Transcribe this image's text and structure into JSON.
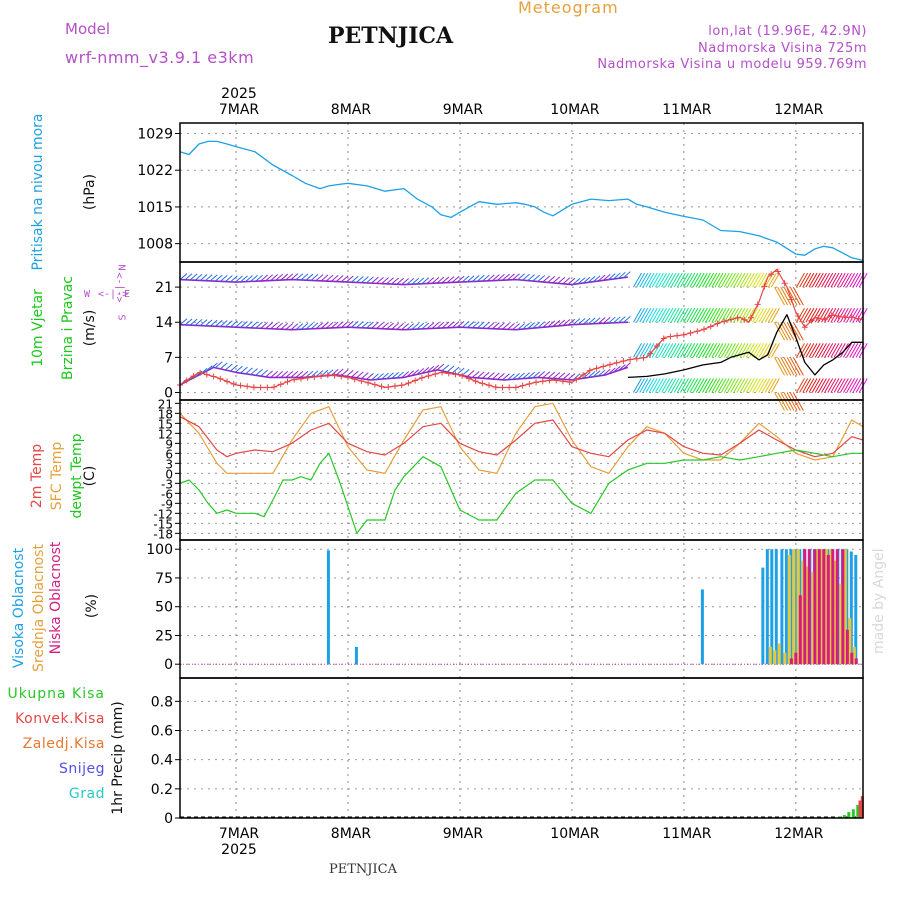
{
  "header": {
    "model_label": "Model",
    "model_name": "wrf-nmm_v3.9.1  e3km",
    "station": "PETNJICA",
    "product": "Meteogram",
    "coords": "lon,lat (19.96E, 42.9N)",
    "elevation": "Nadmorska Visina 725m",
    "model_elevation": "Nadmorska Visina u modelu 959.769m",
    "footer_station": "PETNJICA",
    "credit": "made by Angel"
  },
  "colors": {
    "pressure": "#1ea0e6",
    "wind_top": "#8c28c8",
    "wind_gust": "#e64646",
    "temp2m": "#e64646",
    "sfc": "#e6a03c",
    "dew": "#28c828",
    "cloud_high": "#1ea0e6",
    "cloud_mid": "#e6c83c",
    "cloud_low": "#d21e82",
    "label_purple": "#b450c8",
    "label_orange": "#e6a03c"
  },
  "time_axis": {
    "year": "2025",
    "days": [
      "7MAR",
      "8MAR",
      "9MAR",
      "10MAR",
      "11MAR",
      "12MAR"
    ]
  },
  "panel_labels": {
    "pressure": [
      "Pritisak na nivou mora",
      "(hPa)"
    ],
    "wind": [
      "10m Vjetar",
      "Brzina i Pravac",
      "(m/s)"
    ],
    "wind_compass": [
      "N",
      "<-|->",
      "S",
      "W",
      "<-|->",
      "E"
    ],
    "temp": [
      "2m Temp",
      "SFC Temp",
      "dewpt Temp",
      "(C)"
    ],
    "cloud": [
      "Visoka Oblacnost",
      "Srednja Oblacnost",
      "Niska Oblacnost",
      "(%)"
    ],
    "precip": [
      "Ukupna Kisa",
      "Konvek.Kisa",
      "Zaledj.Kisa",
      "Snijeg",
      "Grad",
      "1hr Precip (mm)"
    ]
  },
  "chart_data": [
    {
      "type": "line",
      "id": "pressure",
      "title": "Pritisak na nivou mora",
      "ylabel": "(hPa)",
      "yticks": [
        1008,
        1015,
        1022,
        1029
      ],
      "ylim": [
        1004.5,
        1031
      ],
      "x_unit": "days from 7MAR 00UTC",
      "xlim": [
        -0.5,
        5.6
      ],
      "series": [
        {
          "name": "MSLP",
          "x": [
            -0.5,
            -0.42,
            -0.33,
            -0.25,
            -0.17,
            -0.08,
            0,
            0.17,
            0.33,
            0.5,
            0.62,
            0.75,
            0.83,
            0.92,
            1.0,
            1.17,
            1.33,
            1.5,
            1.62,
            1.75,
            1.83,
            1.92,
            2.0,
            2.17,
            2.33,
            2.5,
            2.58,
            2.67,
            2.75,
            2.83,
            3.0,
            3.17,
            3.33,
            3.5,
            3.58,
            3.67,
            3.83,
            4.0,
            4.17,
            4.33,
            4.5,
            4.67,
            4.83,
            5.0,
            5.08,
            5.17,
            5.25,
            5.33,
            5.5,
            5.6
          ],
          "y": [
            1025.5,
            1025,
            1027,
            1027.5,
            1027.5,
            1027,
            1026.5,
            1025.5,
            1023,
            1021,
            1019.5,
            1018.5,
            1019,
            1019.3,
            1019.5,
            1019,
            1018,
            1018.5,
            1016.5,
            1015,
            1013.5,
            1013,
            1014,
            1016,
            1015.5,
            1015.8,
            1015.5,
            1015,
            1014,
            1013.3,
            1015.5,
            1016.5,
            1016.2,
            1016.5,
            1015.5,
            1015,
            1014,
            1013.2,
            1012.5,
            1010.5,
            1010.3,
            1009.5,
            1008.3,
            1006,
            1005.8,
            1007,
            1007.5,
            1007.2,
            1005.3,
            1004.8
          ]
        }
      ]
    },
    {
      "type": "line",
      "id": "wind",
      "title": "10m Vjetar Brzina i Pravac",
      "ylabel": "(m/s)",
      "yticks": [
        0,
        7,
        14,
        21
      ],
      "ylim": [
        -1.5,
        26
      ],
      "x_unit": "days from 7MAR 00UTC",
      "xlim": [
        -0.5,
        5.6
      ],
      "series": [
        {
          "name": "speed",
          "x": [
            3.5,
            3.67,
            3.83,
            4.0,
            4.17,
            4.33,
            4.42,
            4.5,
            4.58,
            4.67,
            4.75,
            4.83,
            4.92,
            5.0,
            5.08,
            5.17,
            5.25,
            5.33,
            5.42,
            5.5,
            5.6
          ],
          "y": [
            3,
            3.2,
            3.7,
            4.5,
            5.5,
            6,
            7,
            7.5,
            8,
            6.5,
            7.5,
            12,
            15.5,
            11,
            6,
            3.5,
            5.5,
            6.5,
            8,
            10,
            10
          ]
        },
        {
          "name": "gust",
          "x": [
            -0.5,
            -0.33,
            -0.17,
            0,
            0.17,
            0.33,
            0.5,
            0.67,
            0.83,
            1.0,
            1.17,
            1.33,
            1.5,
            1.67,
            1.83,
            2.0,
            2.17,
            2.33,
            2.5,
            2.67,
            2.83,
            3.0,
            3.17,
            3.33,
            3.5,
            3.67,
            3.83,
            4.0,
            4.17,
            4.33,
            4.5,
            4.58,
            4.67,
            4.75,
            4.83,
            4.92,
            5.0,
            5.08,
            5.17,
            5.25,
            5.33,
            5.42,
            5.5,
            5.6
          ],
          "y": [
            1.5,
            4,
            3,
            1.5,
            1,
            1,
            2.5,
            3,
            3.5,
            3,
            2,
            1,
            1.5,
            3,
            4,
            3.5,
            2,
            1,
            1,
            2,
            2.5,
            2,
            4.5,
            5.5,
            6.5,
            7,
            11,
            11.5,
            12.5,
            14,
            15,
            14,
            18,
            23,
            24.5,
            21,
            16,
            13,
            15,
            14.5,
            15.5,
            15,
            15,
            14.5
          ]
        },
        {
          "name": "member-high",
          "x": [
            -0.5,
            0,
            0.5,
            1,
            1.5,
            2,
            2.5,
            3,
            3.5
          ],
          "y": [
            22.5,
            22,
            22.5,
            22,
            21.5,
            22,
            22.5,
            21.5,
            23
          ]
        },
        {
          "name": "member-mid",
          "x": [
            -0.5,
            0,
            0.5,
            1,
            1.5,
            2,
            2.5,
            3,
            3.5
          ],
          "y": [
            13.5,
            13,
            12.5,
            13,
            12.5,
            13,
            12.5,
            13.5,
            14
          ]
        }
      ]
    },
    {
      "type": "line",
      "id": "temperature",
      "title": "2m Temp / SFC Temp / dewpt Temp",
      "ylabel": "(C)",
      "yticks": [
        21,
        18,
        15,
        12,
        9,
        6,
        3,
        0,
        -3,
        -6,
        -9,
        -12,
        -15,
        -18
      ],
      "ylim": [
        -20,
        22
      ],
      "x_unit": "days from 7MAR 00UTC",
      "xlim": [
        -0.5,
        5.6
      ],
      "series": [
        {
          "name": "2m Temp",
          "x": [
            -0.5,
            -0.33,
            -0.17,
            -0.08,
            0,
            0.17,
            0.33,
            0.5,
            0.67,
            0.83,
            1.0,
            1.17,
            1.33,
            1.5,
            1.67,
            1.83,
            2.0,
            2.17,
            2.33,
            2.5,
            2.67,
            2.83,
            3.0,
            3.17,
            3.33,
            3.5,
            3.67,
            3.83,
            4.0,
            4.17,
            4.33,
            4.5,
            4.67,
            4.83,
            5.0,
            5.17,
            5.33,
            5.5,
            5.6
          ],
          "y": [
            17,
            14,
            7,
            5,
            6,
            7,
            6.5,
            9,
            13,
            15,
            9,
            6.5,
            5.5,
            9,
            14,
            15,
            9,
            6.5,
            5.5,
            10,
            15,
            16,
            8,
            6,
            5,
            10,
            13,
            12,
            8,
            6,
            5.5,
            9,
            13,
            10,
            7,
            5,
            6,
            11,
            10
          ]
        },
        {
          "name": "SFC Temp",
          "x": [
            -0.5,
            -0.33,
            -0.17,
            -0.08,
            0,
            0.17,
            0.33,
            0.5,
            0.67,
            0.83,
            1.0,
            1.17,
            1.33,
            1.5,
            1.67,
            1.83,
            2.0,
            2.17,
            2.33,
            2.5,
            2.67,
            2.83,
            3.0,
            3.17,
            3.33,
            3.5,
            3.67,
            3.83,
            4.0,
            4.17,
            4.33,
            4.5,
            4.67,
            4.83,
            5.0,
            5.17,
            5.33,
            5.5,
            5.6
          ],
          "y": [
            18,
            12,
            3,
            0,
            0,
            0,
            0,
            10,
            18,
            20,
            8,
            1,
            0,
            10,
            19,
            20,
            8,
            1,
            0,
            12,
            20,
            21,
            10,
            2,
            0,
            8,
            14,
            12,
            6,
            4,
            4,
            9,
            15,
            11,
            6,
            4,
            5,
            16,
            14
          ]
        },
        {
          "name": "dewpt Temp",
          "x": [
            -0.5,
            -0.42,
            -0.33,
            -0.25,
            -0.17,
            -0.08,
            0,
            0.17,
            0.25,
            0.33,
            0.42,
            0.5,
            0.58,
            0.67,
            0.75,
            0.83,
            0.92,
            1.0,
            1.08,
            1.17,
            1.33,
            1.42,
            1.5,
            1.67,
            1.83,
            2.0,
            2.17,
            2.33,
            2.5,
            2.67,
            2.83,
            3.0,
            3.17,
            3.33,
            3.5,
            3.67,
            3.83,
            4.0,
            4.17,
            4.33,
            4.5,
            4.67,
            4.83,
            5.0,
            5.17,
            5.33,
            5.5,
            5.6
          ],
          "y": [
            -3,
            -2,
            -5,
            -9,
            -12,
            -11,
            -12,
            -12,
            -13,
            -8,
            -2,
            -2,
            -1,
            -2,
            3,
            6,
            -2,
            -10,
            -18,
            -14,
            -14,
            -5,
            -1,
            5,
            2,
            -11,
            -14,
            -14,
            -6,
            -2,
            -2,
            -9,
            -12,
            -3,
            1,
            3,
            3,
            4,
            4,
            5,
            4,
            5,
            6,
            7,
            6,
            5,
            6,
            6
          ]
        }
      ]
    },
    {
      "type": "bar",
      "id": "cloud",
      "title": "Visoka / Srednja / Niska Oblacnost",
      "ylabel": "(%)",
      "yticks": [
        0,
        25,
        50,
        75,
        100
      ],
      "ylim": [
        0,
        100
      ],
      "x_unit": "days from 7MAR 00UTC",
      "xlim": [
        -0.5,
        5.6
      ],
      "series": [
        {
          "name": "Visoka Oblacnost",
          "x": [
            0.83,
            1.08,
            4.17,
            4.71,
            4.75,
            4.79,
            4.83,
            4.88,
            4.92,
            4.96,
            5.0,
            5.04,
            5.08,
            5.13,
            5.17,
            5.21,
            5.25,
            5.29,
            5.33,
            5.38,
            5.42,
            5.46,
            5.5,
            5.54
          ],
          "values": [
            99,
            15,
            65,
            84,
            100,
            100,
            100,
            100,
            100,
            100,
            100,
            100,
            100,
            100,
            100,
            100,
            100,
            100,
            100,
            100,
            100,
            100,
            98,
            95
          ]
        },
        {
          "name": "Srednja Oblacnost",
          "x": [
            4.75,
            4.79,
            4.83,
            4.88,
            4.92,
            4.96,
            5.0,
            5.04,
            5.08,
            5.13,
            5.17,
            5.21,
            5.25,
            5.29,
            5.33,
            5.38,
            5.42,
            5.46,
            5.5
          ],
          "values": [
            15,
            12,
            18,
            10,
            95,
            100,
            100,
            90,
            85,
            80,
            100,
            100,
            100,
            100,
            90,
            70,
            100,
            40,
            15
          ]
        },
        {
          "name": "Niska Oblacnost",
          "x": [
            4.92,
            4.96,
            5.0,
            5.04,
            5.08,
            5.13,
            5.17,
            5.21,
            5.25,
            5.29,
            5.33,
            5.38,
            5.42,
            5.46,
            5.5
          ],
          "values": [
            5,
            10,
            60,
            100,
            100,
            100,
            100,
            100,
            95,
            100,
            100,
            100,
            30,
            10,
            5
          ]
        }
      ]
    },
    {
      "type": "bar",
      "id": "precip",
      "title": "1hr Precip",
      "ylabel": "1hr Precip (mm)",
      "yticks": [
        0,
        0.2,
        0.4,
        0.6,
        0.8
      ],
      "ylim": [
        0,
        0.96
      ],
      "x_unit": "days from 7MAR 00UTC",
      "xlim": [
        -0.5,
        5.6
      ],
      "series": [
        {
          "name": "Ukupna Kisa",
          "x": [
            5.38,
            5.42,
            5.46,
            5.5,
            5.54
          ],
          "values": [
            0.01,
            0.02,
            0.04,
            0.06,
            0.09
          ]
        },
        {
          "name": "Konvek.Kisa",
          "x": [
            5.56,
            5.58
          ],
          "values": [
            0.12,
            0.15
          ]
        }
      ]
    }
  ]
}
